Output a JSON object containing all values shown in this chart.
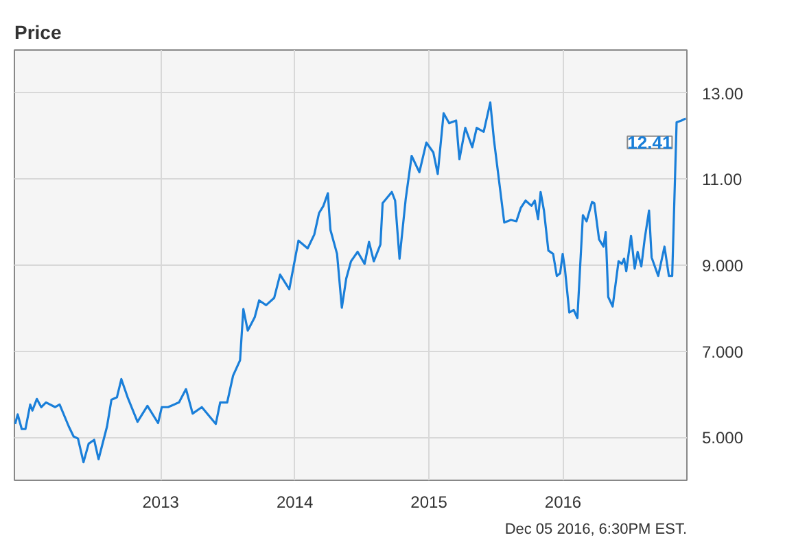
{
  "chart_data": {
    "type": "line",
    "title": "Price",
    "x": [
      "2011-12-02",
      "2011-12-09",
      "2011-12-20",
      "2011-12-30",
      "2012-01-12",
      "2012-01-18",
      "2012-01-30",
      "2012-02-11",
      "2012-02-24",
      "2012-03-20",
      "2012-04-01",
      "2012-04-26",
      "2012-05-09",
      "2012-05-21",
      "2012-06-05",
      "2012-06-19",
      "2012-07-04",
      "2012-07-16",
      "2012-08-08",
      "2012-08-20",
      "2012-09-04",
      "2012-09-16",
      "2012-10-03",
      "2012-10-30",
      "2012-11-26",
      "2012-12-25",
      "2013-01-04",
      "2013-01-21",
      "2013-02-20",
      "2013-03-11",
      "2013-03-29",
      "2013-04-23",
      "2013-05-31",
      "2013-06-12",
      "2013-07-01",
      "2013-07-17",
      "2013-08-05",
      "2013-08-14",
      "2013-08-26",
      "2013-09-14",
      "2013-09-26",
      "2013-10-15",
      "2013-11-06",
      "2013-11-22",
      "2013-12-17",
      "2014-01-11",
      "2014-02-05",
      "2014-02-23",
      "2014-03-08",
      "2014-03-20",
      "2014-04-01",
      "2014-04-08",
      "2014-04-26",
      "2014-05-09",
      "2014-05-21",
      "2014-06-03",
      "2014-06-21",
      "2014-07-10",
      "2014-07-22",
      "2014-08-04",
      "2014-08-22",
      "2014-08-28",
      "2014-09-22",
      "2014-10-01",
      "2014-10-13",
      "2014-10-30",
      "2014-11-15",
      "2014-12-06",
      "2014-12-25",
      "2015-01-13",
      "2015-01-25",
      "2015-02-10",
      "2015-02-25",
      "2015-03-16",
      "2015-03-25",
      "2015-04-10",
      "2015-04-29",
      "2015-05-11",
      "2015-05-30",
      "2015-06-17",
      "2015-06-27",
      "2015-07-25",
      "2015-08-12",
      "2015-08-27",
      "2015-09-08",
      "2015-09-21",
      "2015-10-07",
      "2015-10-16",
      "2015-10-25",
      "2015-11-01",
      "2015-11-10",
      "2015-11-22",
      "2015-12-05",
      "2015-12-15",
      "2015-12-24",
      "2015-12-31",
      "2016-01-06",
      "2016-01-18",
      "2016-01-30",
      "2016-02-09",
      "2016-02-24",
      "2016-03-05",
      "2016-03-20",
      "2016-03-26",
      "2016-04-08",
      "2016-04-20",
      "2016-04-26",
      "2016-05-03",
      "2016-05-15",
      "2016-05-31",
      "2016-06-09",
      "2016-06-15",
      "2016-06-21",
      "2016-07-04",
      "2016-07-14",
      "2016-07-22",
      "2016-08-01",
      "2016-08-10",
      "2016-08-22",
      "2016-08-29",
      "2016-09-16",
      "2016-10-03",
      "2016-10-15",
      "2016-10-24",
      "2016-11-05",
      "2016-11-18",
      "2016-11-30"
    ],
    "series": [
      {
        "color": "#1a7fd9",
        "values": [
          5.31,
          5.53,
          5.19,
          5.19,
          5.76,
          5.62,
          5.89,
          5.7,
          5.81,
          5.7,
          5.76,
          5.25,
          5.02,
          4.97,
          4.42,
          4.85,
          4.94,
          4.49,
          5.25,
          5.87,
          5.93,
          6.35,
          5.93,
          5.36,
          5.73,
          5.33,
          5.7,
          5.7,
          5.81,
          6.12,
          5.55,
          5.7,
          5.31,
          5.81,
          5.81,
          6.43,
          6.79,
          7.98,
          7.48,
          7.79,
          8.18,
          8.07,
          8.24,
          8.78,
          8.44,
          9.57,
          9.39,
          9.71,
          10.21,
          10.38,
          10.67,
          9.82,
          9.26,
          8.01,
          8.69,
          9.09,
          9.31,
          9.03,
          9.54,
          9.09,
          9.48,
          10.44,
          10.7,
          10.5,
          9.15,
          10.55,
          11.54,
          11.16,
          11.85,
          11.62,
          11.12,
          12.53,
          12.3,
          12.36,
          11.46,
          12.19,
          11.74,
          12.19,
          12.1,
          12.78,
          11.91,
          9.99,
          10.05,
          10.02,
          10.33,
          10.5,
          10.38,
          10.5,
          10.07,
          10.7,
          10.27,
          9.34,
          9.26,
          8.75,
          8.81,
          9.26,
          8.92,
          7.9,
          7.96,
          7.77,
          10.16,
          10.02,
          10.47,
          10.44,
          9.6,
          9.43,
          9.77,
          8.26,
          8.04,
          9.09,
          9.03,
          9.15,
          8.86,
          9.68,
          8.92,
          9.31,
          8.97,
          9.6,
          10.27,
          9.18,
          8.75,
          9.43,
          8.75,
          8.75,
          12.32,
          12.36,
          12.41
        ]
      }
    ],
    "xlim": [
      "2011-11-30",
      "2016-12-03"
    ],
    "xticks": [
      {
        "value": "2013",
        "label": "2013"
      },
      {
        "value": "2014",
        "label": "2014"
      },
      {
        "value": "2015",
        "label": "2015"
      },
      {
        "value": "2016",
        "label": "2016"
      }
    ],
    "ylim": [
      4,
      14
    ],
    "yticks": [
      {
        "value": 5,
        "label": "5.000"
      },
      {
        "value": 7,
        "label": "7.000"
      },
      {
        "value": 9,
        "label": "9.000"
      },
      {
        "value": 11,
        "label": "11.00"
      },
      {
        "value": 13,
        "label": "13.00"
      }
    ],
    "grid": true,
    "marker": "none",
    "line_style": "solid",
    "annotations": [
      {
        "text": "12.41",
        "x": "2016-11-30",
        "y": 12.41
      },
      "Dec 05 2016, 6:30PM EST."
    ]
  }
}
